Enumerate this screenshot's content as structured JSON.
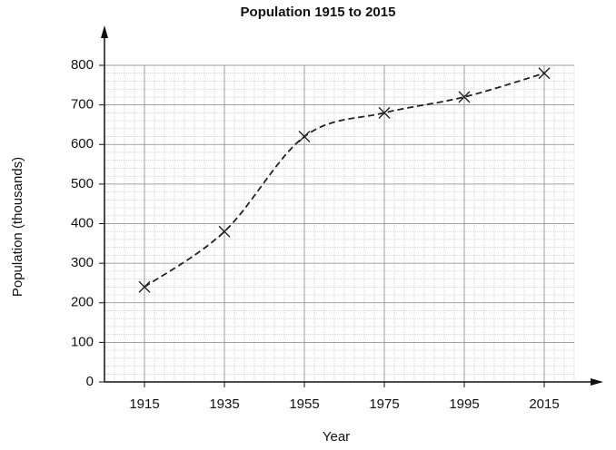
{
  "chart_data": {
    "type": "line",
    "title": "Population 1915 to 2015",
    "x_label": "Year",
    "y_label": "Population (thousands)",
    "x": [
      1915,
      1935,
      1955,
      1975,
      1995,
      2015
    ],
    "series": [
      {
        "color": "#222222",
        "values": [
          240,
          380,
          620,
          680,
          720,
          780
        ]
      }
    ],
    "xlim": [
      1905,
      2025
    ],
    "xticks": [
      1915,
      1935,
      1955,
      1975,
      1995,
      2015
    ],
    "ylim": [
      0,
      800
    ],
    "yticks": [
      0,
      100,
      200,
      300,
      400,
      500,
      600,
      700,
      800
    ],
    "grid": true,
    "line_style": "dashed",
    "marker": "x",
    "smooth": true
  }
}
